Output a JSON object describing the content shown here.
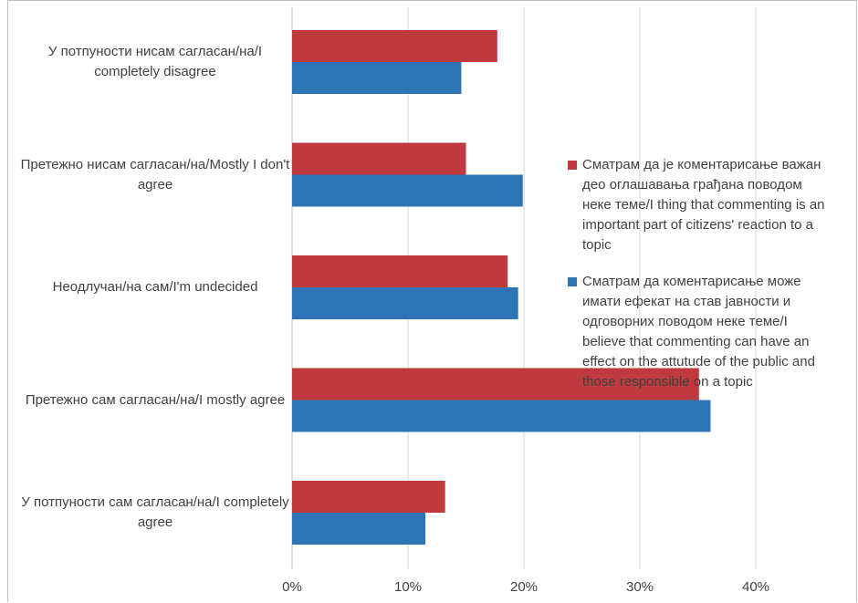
{
  "chart_data": {
    "type": "bar",
    "orientation": "horizontal",
    "categories": [
      "У потпуности нисам сагласан/на/I completely disagree",
      "Претежно нисам сагласан/на/Mostly I don't agree",
      "Неодлучан/на сам/I'm undecided",
      "Претежно сам сагласан/на/I mostly agree",
      "У потпуности сам сагласан/на/I completely agree"
    ],
    "series": [
      {
        "name": "Сматрам да је коментарисање важан део оглашавања грађана поводом неке теме/I thing that commenting is an important part of citizens' reaction to a topic",
        "color": "#c0393f",
        "values": [
          17.7,
          15.0,
          18.6,
          35.1,
          13.2
        ]
      },
      {
        "name": "Сматрам да коментарисање може имати ефекат на став јавности и одговорних поводом неке теме/I believe that commenting can have an effect on the attutude of the public and those responsible on a topic",
        "color": "#2e75b6",
        "values": [
          14.6,
          19.9,
          19.5,
          36.1,
          11.5
        ]
      }
    ],
    "xlim": [
      0,
      40
    ],
    "xticks": [
      "0%",
      "10%",
      "20%",
      "30%",
      "40%"
    ],
    "grid": true,
    "legend_position": "right"
  }
}
